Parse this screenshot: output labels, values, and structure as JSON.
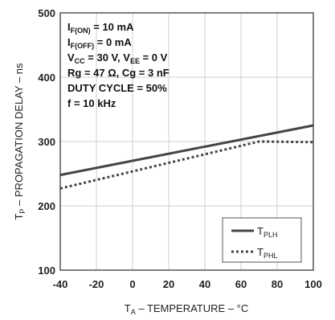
{
  "chart_data": {
    "type": "line",
    "title": "",
    "xlabel": "T_A – TEMPERATURE – °C",
    "xlabel_parts": {
      "main": "T",
      "sub": "A",
      "rest": " – TEMPERATURE – °C"
    },
    "ylabel": "T_P – PROPAGATION DELAY – ns",
    "ylabel_parts": {
      "main": "T",
      "sub": "P",
      "rest": " – PROPAGATION DELAY – ns"
    },
    "xlim": [
      -40,
      100
    ],
    "ylim": [
      100,
      500
    ],
    "xticks": [
      "-40",
      "-20",
      "0",
      "20",
      "40",
      "60",
      "80",
      "100"
    ],
    "xtick_values": [
      -40,
      -20,
      0,
      20,
      40,
      60,
      80,
      100
    ],
    "yticks": [
      "100",
      "200",
      "300",
      "400",
      "500"
    ],
    "ytick_values": [
      100,
      200,
      300,
      400,
      500
    ],
    "grid": true,
    "legend_position": "bottom-right",
    "conditions": [
      {
        "main": "I",
        "sub": "F(ON)",
        "rest": " = 10 mA"
      },
      {
        "main": "I",
        "sub": "F(OFF)",
        "rest": " = 0 mA"
      },
      {
        "main": "V",
        "sub": "CC",
        "rest": " = 30 V, V",
        "sub2": "EE",
        "rest2": " = 0 V"
      },
      {
        "main": "Rg = 47 Ω, Cg = 3 nF"
      },
      {
        "main": "DUTY CYCLE = 50%"
      },
      {
        "main": "f = 10 kHz"
      }
    ],
    "series": [
      {
        "name": "T_PLH",
        "label_main": "T",
        "label_sub": "PLH",
        "style": "solid",
        "color": "#444444",
        "x": [
          -40,
          100
        ],
        "y": [
          248,
          325
        ]
      },
      {
        "name": "T_PHL",
        "label_main": "T",
        "label_sub": "PHL",
        "style": "dotted",
        "color": "#444444",
        "x": [
          -40,
          70,
          100
        ],
        "y": [
          227,
          300,
          299
        ]
      }
    ]
  }
}
